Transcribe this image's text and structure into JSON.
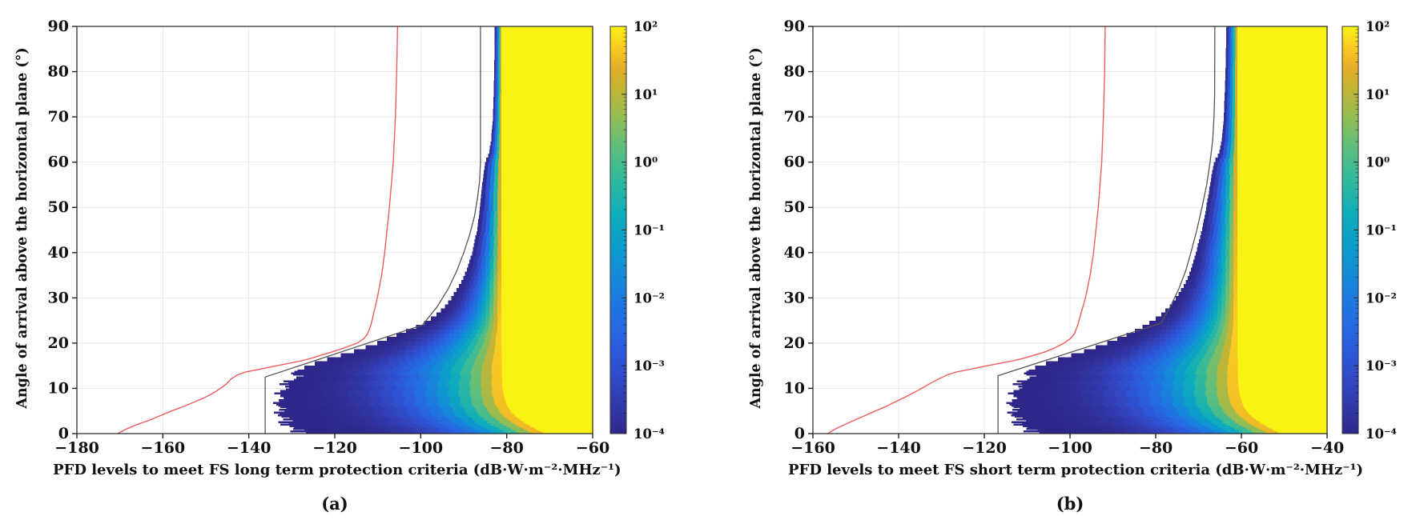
{
  "figure": {
    "description": "Two-panel scientific figure: heatmap distributions of PFD levels versus angle of arrival, with red and gray reference curves and a logarithmic parula colorbar.",
    "panel_a_caption": "(a)",
    "panel_b_caption": "(b)"
  },
  "styles": {
    "background": "#ffffff",
    "text_color": "#111111",
    "axis_color": "#222222",
    "grid_color": "#e8e8e8",
    "red_curve_color": "#ee5c5e",
    "gray_curve_color": "#565656",
    "yellow_fill": "#f9f214",
    "parula_stops": [
      [
        0.0,
        "#2e2789"
      ],
      [
        0.1,
        "#3340b8"
      ],
      [
        0.2,
        "#2c59dc"
      ],
      [
        0.3,
        "#2172e2"
      ],
      [
        0.38,
        "#1687da"
      ],
      [
        0.46,
        "#0b9dca"
      ],
      [
        0.54,
        "#0fadbb"
      ],
      [
        0.62,
        "#2fb99e"
      ],
      [
        0.7,
        "#5cbe7f"
      ],
      [
        0.78,
        "#95bd53"
      ],
      [
        0.85,
        "#c4b434"
      ],
      [
        0.9,
        "#e7ae27"
      ],
      [
        0.945,
        "#f9c823"
      ],
      [
        1.0,
        "#f9f214"
      ]
    ]
  },
  "chart_data": [
    {
      "type": "heatmap",
      "caption": "(a)",
      "xlabel": "PFD levels to meet FS long term protection criteria (dB·W·m⁻²·MHz⁻¹)",
      "ylabel": "Angle of arrival above the horizontal plane (°)",
      "xlim": [
        -180,
        -60
      ],
      "ylim": [
        0,
        90
      ],
      "xticks": [
        -180,
        -160,
        -140,
        -120,
        -100,
        -80,
        -60
      ],
      "xtick_labels": [
        "−180",
        "−160",
        "−140",
        "−120",
        "−100",
        "−80",
        "−60"
      ],
      "yticks": [
        0,
        10,
        20,
        30,
        40,
        50,
        60,
        70,
        80,
        90
      ],
      "ytick_labels": [
        "0",
        "10",
        "20",
        "30",
        "40",
        "50",
        "60",
        "70",
        "80",
        "90"
      ],
      "grid": true,
      "colorbar": {
        "scale": "log",
        "range_exponents": [
          -4,
          2
        ],
        "tick_labels": [
          "10²",
          "10¹",
          "10⁰",
          "10⁻¹",
          "10⁻²",
          "10⁻³",
          "10⁻⁴"
        ]
      },
      "red_curve": {
        "points": [
          [
            0,
            -170.5
          ],
          [
            1,
            -168.5
          ],
          [
            2,
            -166
          ],
          [
            3,
            -163
          ],
          [
            4,
            -160.5
          ],
          [
            5,
            -158
          ],
          [
            6,
            -155.2
          ],
          [
            7,
            -152.6
          ],
          [
            8,
            -150.2
          ],
          [
            9,
            -148.2
          ],
          [
            10,
            -146.6
          ],
          [
            11,
            -145.2
          ],
          [
            12,
            -144.2
          ],
          [
            13,
            -142.6
          ],
          [
            13.6,
            -140.8
          ],
          [
            14.2,
            -137.6
          ],
          [
            14.8,
            -134.6
          ],
          [
            15.4,
            -131.4
          ],
          [
            16,
            -128.2
          ],
          [
            16.6,
            -125.6
          ],
          [
            17.2,
            -123.6
          ],
          [
            18,
            -120.8
          ],
          [
            19,
            -117.6
          ],
          [
            20,
            -114.8
          ],
          [
            21,
            -113.2
          ],
          [
            22,
            -112.4
          ],
          [
            24,
            -111.6
          ],
          [
            26,
            -111.1
          ],
          [
            30,
            -110.1
          ],
          [
            35,
            -109.1
          ],
          [
            40,
            -108.4
          ],
          [
            50,
            -107.3
          ],
          [
            60,
            -106.4
          ],
          [
            70,
            -105.9
          ],
          [
            80,
            -105.6
          ],
          [
            90,
            -105.4
          ]
        ]
      },
      "gray_curve": {
        "points": [
          [
            0,
            -136.2
          ],
          [
            12.5,
            -136.2
          ],
          [
            24,
            -99.6
          ],
          [
            28,
            -96.2
          ],
          [
            32,
            -93.6
          ],
          [
            36,
            -91.6
          ],
          [
            40,
            -90
          ],
          [
            44,
            -88.6
          ],
          [
            48,
            -87.5
          ],
          [
            52,
            -86.8
          ],
          [
            56,
            -86.3
          ],
          [
            60,
            -86.1
          ],
          [
            90,
            -86.1
          ]
        ]
      },
      "density": {
        "left_edge": [
          [
            13.2,
            -130.5
          ],
          [
            14,
            -128.5
          ],
          [
            15,
            -126
          ],
          [
            16,
            -123
          ],
          [
            17,
            -119.5
          ],
          [
            18,
            -116
          ],
          [
            19,
            -113
          ],
          [
            20,
            -110
          ],
          [
            21,
            -107.5
          ],
          [
            22,
            -105
          ],
          [
            23,
            -102.5
          ],
          [
            24,
            -100
          ],
          [
            25,
            -98.2
          ],
          [
            26,
            -96.6
          ],
          [
            28,
            -94.4
          ],
          [
            30,
            -92.8
          ],
          [
            33,
            -90.8
          ],
          [
            36,
            -89.3
          ],
          [
            40,
            -88
          ],
          [
            45,
            -86.9
          ],
          [
            50,
            -86.2
          ],
          [
            55,
            -85.7
          ],
          [
            58,
            -85.3
          ],
          [
            60,
            -85
          ],
          [
            61,
            -84.5
          ],
          [
            62,
            -84.1
          ],
          [
            65,
            -83.6
          ],
          [
            70,
            -83.2
          ],
          [
            80,
            -82.9
          ],
          [
            90,
            -82.8
          ]
        ],
        "jagged_below_deg": 13.2,
        "jagged_base": {
          "v0": -127,
          "depth": 6,
          "pow": 0.55
        },
        "jagged_amp_db": 2.2,
        "jagged_left_clamp": -135.5,
        "yellow_edge": {
          "v_base": -81.2,
          "drop": 9.9,
          "scale": 3.6,
          "pow": 1.25
        },
        "shade_exp": {
          "base": 1.4,
          "extra": 2.1,
          "scale": 18
        }
      }
    },
    {
      "type": "heatmap",
      "caption": "(b)",
      "xlabel": "PFD levels to meet FS short term protection criteria (dB·W·m⁻²·MHz⁻¹)",
      "ylabel": "Angle of arrival above the horizontal plane (°)",
      "xlim": [
        -160,
        -40
      ],
      "ylim": [
        0,
        90
      ],
      "xticks": [
        -160,
        -140,
        -120,
        -100,
        -80,
        -60,
        -40
      ],
      "xtick_labels": [
        "−160",
        "−140",
        "−120",
        "−100",
        "−80",
        "−60",
        "−40"
      ],
      "yticks": [
        0,
        10,
        20,
        30,
        40,
        50,
        60,
        70,
        80,
        90
      ],
      "ytick_labels": [
        "0",
        "10",
        "20",
        "30",
        "40",
        "50",
        "60",
        "70",
        "80",
        "90"
      ],
      "grid": true,
      "colorbar": {
        "scale": "log",
        "range_exponents": [
          -4,
          2
        ],
        "tick_labels": [
          "10²",
          "10¹",
          "10⁰",
          "10⁻¹",
          "10⁻²",
          "10⁻³",
          "10⁻⁴"
        ]
      },
      "red_curve": {
        "points": [
          [
            0,
            -156.5
          ],
          [
            1,
            -154.8
          ],
          [
            2,
            -152.6
          ],
          [
            3,
            -150.2
          ],
          [
            4,
            -147.8
          ],
          [
            5,
            -145.4
          ],
          [
            6,
            -143
          ],
          [
            7,
            -140.8
          ],
          [
            8,
            -138.6
          ],
          [
            9,
            -136.6
          ],
          [
            10,
            -134.6
          ],
          [
            11,
            -132.8
          ],
          [
            12,
            -130.8
          ],
          [
            13,
            -128.6
          ],
          [
            13.6,
            -126.6
          ],
          [
            14.2,
            -123.4
          ],
          [
            14.8,
            -120.4
          ],
          [
            15.4,
            -117.2
          ],
          [
            16,
            -113.8
          ],
          [
            16.6,
            -111
          ],
          [
            17.2,
            -108.8
          ],
          [
            18,
            -106
          ],
          [
            19,
            -103.4
          ],
          [
            20,
            -101.4
          ],
          [
            21,
            -99.9
          ],
          [
            22,
            -99
          ],
          [
            24,
            -98.2
          ],
          [
            26,
            -97.6
          ],
          [
            30,
            -96.4
          ],
          [
            35,
            -95.3
          ],
          [
            40,
            -94.5
          ],
          [
            50,
            -93.4
          ],
          [
            60,
            -92.6
          ],
          [
            70,
            -92.2
          ],
          [
            80,
            -91.9
          ],
          [
            90,
            -91.8
          ]
        ]
      },
      "gray_curve": {
        "points": [
          [
            0,
            -116.8
          ],
          [
            12.8,
            -116.8
          ],
          [
            24.4,
            -78.8
          ],
          [
            28,
            -76.6
          ],
          [
            32,
            -74.6
          ],
          [
            36,
            -73
          ],
          [
            40,
            -71.8
          ],
          [
            45,
            -70.4
          ],
          [
            50,
            -69.2
          ],
          [
            55,
            -68.1
          ],
          [
            60,
            -67.3
          ],
          [
            65,
            -66.7
          ],
          [
            70,
            -66.4
          ],
          [
            75,
            -66.25
          ],
          [
            90,
            -66.2
          ]
        ]
      },
      "density": {
        "left_edge": [
          [
            13.2,
            -111
          ],
          [
            14,
            -109.5
          ],
          [
            15,
            -107
          ],
          [
            16,
            -104
          ],
          [
            17,
            -100.5
          ],
          [
            18,
            -97.2
          ],
          [
            19,
            -94.2
          ],
          [
            20,
            -91.2
          ],
          [
            21,
            -88.6
          ],
          [
            22,
            -86.2
          ],
          [
            23,
            -84.2
          ],
          [
            24,
            -82.2
          ],
          [
            25,
            -80.6
          ],
          [
            26,
            -79
          ],
          [
            28,
            -76.8
          ],
          [
            30,
            -75.2
          ],
          [
            33,
            -73.2
          ],
          [
            36,
            -71.8
          ],
          [
            40,
            -70.6
          ],
          [
            45,
            -69.2
          ],
          [
            50,
            -68.2
          ],
          [
            55,
            -67.3
          ],
          [
            58,
            -66.8
          ],
          [
            60,
            -66.3
          ],
          [
            61,
            -65.7
          ],
          [
            62,
            -65.2
          ],
          [
            65,
            -64.6
          ],
          [
            70,
            -64.1
          ],
          [
            80,
            -63.7
          ],
          [
            90,
            -63.5
          ]
        ],
        "jagged_below_deg": 13.2,
        "jagged_base": {
          "v0": -107.5,
          "depth": 6,
          "pow": 0.55
        },
        "jagged_amp_db": 2.2,
        "jagged_left_clamp": -116.0,
        "yellow_edge": {
          "v_base": -60.9,
          "drop": 9.9,
          "scale": 3.6,
          "pow": 1.25
        },
        "shade_exp": {
          "base": 1.4,
          "extra": 2.1,
          "scale": 18
        }
      }
    }
  ]
}
